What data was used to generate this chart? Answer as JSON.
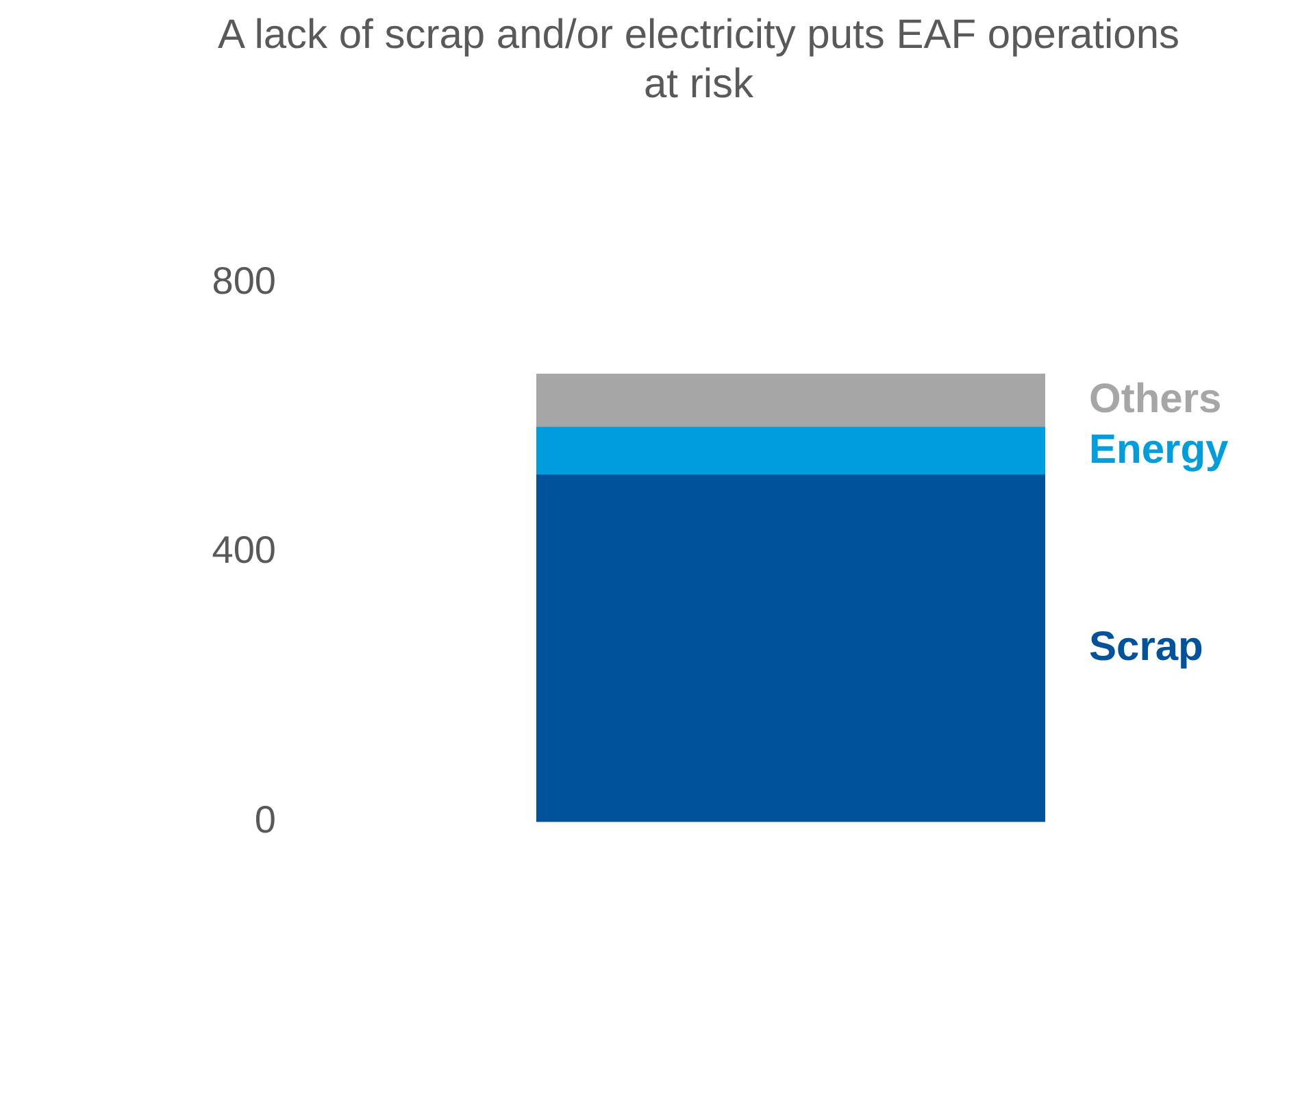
{
  "chart_data": {
    "type": "bar",
    "title": "A lack of scrap and/or electricity puts EAF operations at risk",
    "categories": [
      null
    ],
    "stacked": true,
    "legend": false,
    "grid": false,
    "ylim": [
      0,
      800
    ],
    "yticks": [
      0,
      400,
      800
    ],
    "series": [
      {
        "name": "Scrap",
        "color": "#00529b",
        "values": [
          515
        ]
      },
      {
        "name": "Energy",
        "color": "#009ddc",
        "values": [
          71
        ]
      },
      {
        "name": "Others",
        "color": "#a6a6a6",
        "values": [
          79
        ]
      }
    ]
  }
}
